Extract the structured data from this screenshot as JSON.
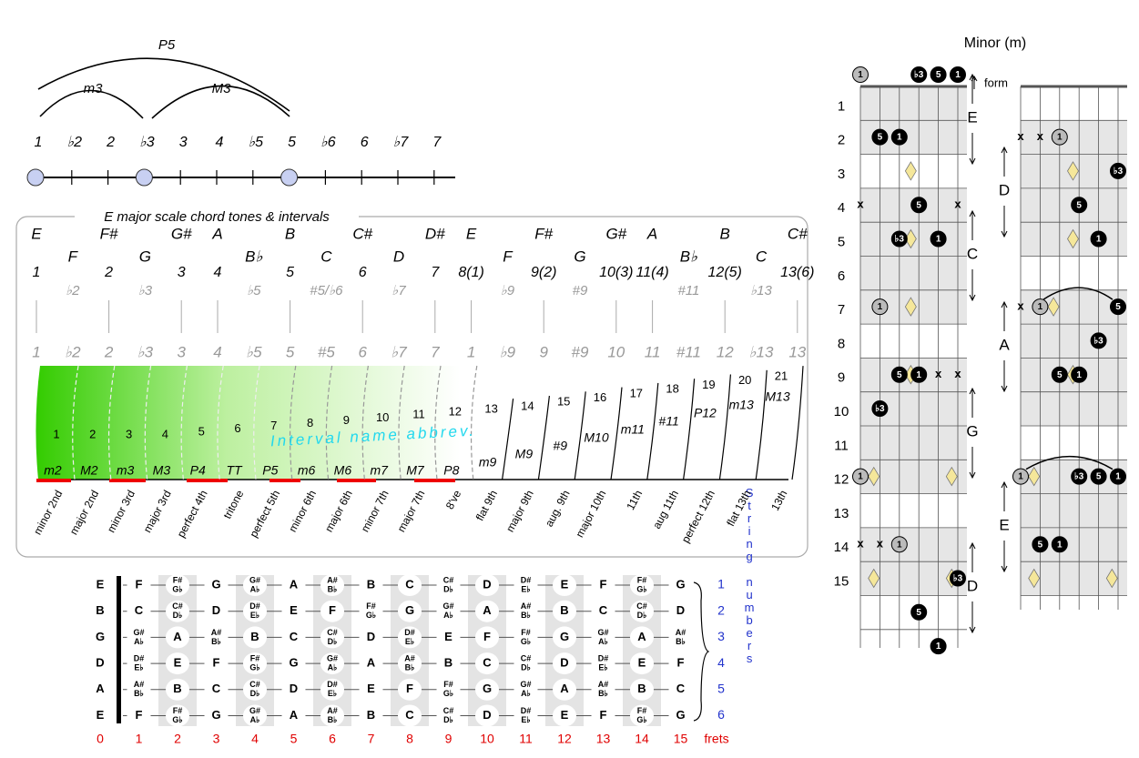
{
  "intervals_diagram": {
    "arcs": [
      "P5",
      "m3",
      "M3"
    ],
    "degrees": [
      "1",
      "♭2",
      "2",
      "♭3",
      "3",
      "4",
      "♭5",
      "5",
      "♭6",
      "6",
      "♭7",
      "7"
    ]
  },
  "scale_box": {
    "title": "E major scale chord tones & intervals",
    "scale_notes": [
      "E",
      null,
      "F#",
      null,
      "G#",
      "A",
      null,
      "B",
      null,
      "C#",
      null,
      "D#",
      "E",
      null,
      "F#",
      null,
      "G#",
      "A",
      null,
      "B",
      null,
      "C#"
    ],
    "other_notes": [
      null,
      "F",
      null,
      "G",
      null,
      null,
      "B♭",
      null,
      "C",
      null,
      "D",
      null,
      null,
      "F",
      null,
      "G",
      null,
      null,
      "B♭",
      null,
      "C",
      null
    ],
    "degrees": [
      "1",
      null,
      "2",
      null,
      "3",
      "4",
      null,
      "5",
      null,
      "6",
      null,
      "7",
      "8(1)",
      null,
      "9(2)",
      null,
      "10(3)",
      "11(4)",
      null,
      "12(5)",
      null,
      "13(6)"
    ],
    "altered": [
      null,
      "♭2",
      null,
      "♭3",
      null,
      null,
      "♭5",
      null,
      "#5/♭6",
      null,
      "♭7",
      null,
      null,
      "♭9",
      null,
      "#9",
      null,
      null,
      "#11",
      null,
      "♭13",
      null
    ],
    "chromatic": [
      "1",
      "♭2",
      "2",
      "♭3",
      "3",
      "4",
      "♭5",
      "5",
      "#5",
      "6",
      "♭7",
      "7",
      "1",
      "♭9",
      "9",
      "#9",
      "10",
      "11",
      "#11",
      "12",
      "♭13",
      "13"
    ],
    "overlay": "Interval name abbrev.",
    "intervals": [
      {
        "semitones": 1,
        "abbrev": "m2",
        "name": "minor 2nd"
      },
      {
        "semitones": 2,
        "abbrev": "M2",
        "name": "major 2nd"
      },
      {
        "semitones": 3,
        "abbrev": "m3",
        "name": "minor 3rd"
      },
      {
        "semitones": 4,
        "abbrev": "M3",
        "name": "major 3rd"
      },
      {
        "semitones": 5,
        "abbrev": "P4",
        "name": "perfect 4th"
      },
      {
        "semitones": 6,
        "abbrev": "TT",
        "name": "tritone"
      },
      {
        "semitones": 7,
        "abbrev": "P5",
        "name": "perfect 5th"
      },
      {
        "semitones": 8,
        "abbrev": "m6",
        "name": "minor 6th"
      },
      {
        "semitones": 9,
        "abbrev": "M6",
        "name": "major 6th"
      },
      {
        "semitones": 10,
        "abbrev": "m7",
        "name": "minor 7th"
      },
      {
        "semitones": 11,
        "abbrev": "M7",
        "name": "major 7th"
      },
      {
        "semitones": 12,
        "abbrev": "P8",
        "name": "8've"
      },
      {
        "semitones": 13,
        "abbrev": "m9",
        "name": "flat 9th"
      },
      {
        "semitones": 14,
        "abbrev": "M9",
        "name": "major 9th"
      },
      {
        "semitones": 15,
        "abbrev": "#9",
        "name": "aug. 9th"
      },
      {
        "semitones": 16,
        "abbrev": "M10",
        "name": "major 10th"
      },
      {
        "semitones": 17,
        "abbrev": "m11",
        "name": "11th"
      },
      {
        "semitones": 18,
        "abbrev": "#11",
        "name": "aug 11th"
      },
      {
        "semitones": 19,
        "abbrev": "P12",
        "name": "perfect 12th"
      },
      {
        "semitones": 20,
        "abbrev": "m13",
        "name": "flat 13th"
      },
      {
        "semitones": 21,
        "abbrev": "M13",
        "name": "13th"
      }
    ]
  },
  "fretboard": {
    "open_strings": [
      "E",
      "B",
      "G",
      "D",
      "A",
      "E"
    ],
    "strings": [
      [
        "F",
        {
          "sharp": "F#",
          "flat": "G♭"
        },
        "G",
        {
          "sharp": "G#",
          "flat": "A♭"
        },
        "A",
        {
          "sharp": "A#",
          "flat": "B♭"
        },
        "B",
        "C",
        {
          "sharp": "C#",
          "flat": "D♭"
        },
        "D",
        {
          "sharp": "D#",
          "flat": "E♭"
        },
        "E",
        "F",
        {
          "sharp": "F#",
          "flat": "G♭"
        },
        "G"
      ],
      [
        "C",
        {
          "sharp": "C#",
          "flat": "D♭"
        },
        "D",
        {
          "sharp": "D#",
          "flat": "E♭"
        },
        "E",
        "F",
        {
          "sharp": "F#",
          "flat": "G♭"
        },
        "G",
        {
          "sharp": "G#",
          "flat": "A♭"
        },
        "A",
        {
          "sharp": "A#",
          "flat": "B♭"
        },
        "B",
        "C",
        {
          "sharp": "C#",
          "flat": "D♭"
        },
        "D"
      ],
      [
        {
          "sharp": "G#",
          "flat": "A♭"
        },
        "A",
        {
          "sharp": "A#",
          "flat": "B♭"
        },
        "B",
        "C",
        {
          "sharp": "C#",
          "flat": "D♭"
        },
        "D",
        {
          "sharp": "D#",
          "flat": "E♭"
        },
        "E",
        "F",
        {
          "sharp": "F#",
          "flat": "G♭"
        },
        "G",
        {
          "sharp": "G#",
          "flat": "A♭"
        },
        "A",
        {
          "sharp": "A#",
          "flat": "B♭"
        }
      ],
      [
        {
          "sharp": "D#",
          "flat": "E♭"
        },
        "E",
        "F",
        {
          "sharp": "F#",
          "flat": "G♭"
        },
        "G",
        {
          "sharp": "G#",
          "flat": "A♭"
        },
        "A",
        {
          "sharp": "A#",
          "flat": "B♭"
        },
        "B",
        "C",
        {
          "sharp": "C#",
          "flat": "D♭"
        },
        "D",
        {
          "sharp": "D#",
          "flat": "E♭"
        },
        "E",
        "F"
      ],
      [
        {
          "sharp": "A#",
          "flat": "B♭"
        },
        "B",
        "C",
        {
          "sharp": "C#",
          "flat": "D♭"
        },
        "D",
        {
          "sharp": "D#",
          "flat": "E♭"
        },
        "E",
        "F",
        {
          "sharp": "F#",
          "flat": "G♭"
        },
        "G",
        {
          "sharp": "G#",
          "flat": "A♭"
        },
        "A",
        {
          "sharp": "A#",
          "flat": "B♭"
        },
        "B",
        "C"
      ],
      [
        "F",
        {
          "sharp": "F#",
          "flat": "G♭"
        },
        "G",
        {
          "sharp": "G#",
          "flat": "A♭"
        },
        "A",
        {
          "sharp": "A#",
          "flat": "B♭"
        },
        "B",
        "C",
        {
          "sharp": "C#",
          "flat": "D♭"
        },
        "D",
        {
          "sharp": "D#",
          "flat": "E♭"
        },
        "E",
        "F",
        {
          "sharp": "F#",
          "flat": "G♭"
        },
        "G"
      ]
    ],
    "string_numbers": [
      1,
      2,
      3,
      4,
      5,
      6
    ],
    "string_numbers_label": "String numbers",
    "frets": [
      0,
      1,
      2,
      3,
      4,
      5,
      6,
      7,
      8,
      9,
      10,
      11,
      12,
      13,
      14,
      15
    ],
    "frets_label": "frets"
  },
  "chord_forms": {
    "title": "Minor (m)",
    "form_label": "form",
    "fret_numbers": [
      1,
      2,
      3,
      4,
      5,
      6,
      7,
      8,
      9,
      10,
      11,
      12,
      13,
      14,
      15
    ],
    "left_forms": [
      "E",
      "C",
      "G",
      "D"
    ],
    "right_forms": [
      "D",
      "A",
      "E"
    ],
    "left_dots": [
      {
        "label": "1",
        "fret": 0,
        "string": 1,
        "color": "#bbbbbb"
      },
      {
        "label": "♭3",
        "fret": 0,
        "string": 4,
        "color": "#000000"
      },
      {
        "label": "5",
        "fret": 0,
        "string": 5,
        "color": "#000000"
      },
      {
        "label": "1",
        "fret": 0,
        "string": 6,
        "color": "#000000"
      },
      {
        "label": "5",
        "fret": 2,
        "string": 2,
        "color": "#000000"
      },
      {
        "label": "1",
        "fret": 2,
        "string": 3,
        "color": "#000000"
      },
      {
        "label": "x",
        "fret": 4,
        "string": 1
      },
      {
        "label": "5",
        "fret": 4,
        "string": 4,
        "color": "#000000"
      },
      {
        "label": "x",
        "fret": 4,
        "string": 6
      },
      {
        "label": "♭3",
        "fret": 5,
        "string": 3,
        "color": "#000000"
      },
      {
        "label": "1",
        "fret": 5,
        "string": 5,
        "color": "#000000"
      },
      {
        "label": "1",
        "fret": 7,
        "string": 2,
        "color": "#bbbbbb"
      },
      {
        "label": "5",
        "fret": 9,
        "string": 3,
        "color": "#000000"
      },
      {
        "label": "1",
        "fret": 9,
        "string": 4,
        "color": "#000000"
      },
      {
        "label": "x",
        "fret": 9,
        "string": 5
      },
      {
        "label": "x",
        "fret": 9,
        "string": 6
      },
      {
        "label": "♭3",
        "fret": 10,
        "string": 2,
        "color": "#000000"
      },
      {
        "label": "1",
        "fret": 12,
        "string": 1,
        "color": "#bbbbbb"
      },
      {
        "label": "x",
        "fret": 14,
        "string": 1
      },
      {
        "label": "x",
        "fret": 14,
        "string": 2
      },
      {
        "label": "1",
        "fret": 14,
        "string": 3,
        "color": "#bbbbbb"
      },
      {
        "label": "♭3",
        "fret": 15,
        "string": 6,
        "color": "#000000"
      },
      {
        "label": "5",
        "fret": 16,
        "string": 4,
        "color": "#000000"
      },
      {
        "label": "1",
        "fret": 17,
        "string": 5,
        "color": "#000000"
      }
    ],
    "right_dots": [
      {
        "label": "x",
        "fret": 2,
        "string": 1
      },
      {
        "label": "x",
        "fret": 2,
        "string": 2
      },
      {
        "label": "1",
        "fret": 2,
        "string": 3,
        "color": "#bbbbbb"
      },
      {
        "label": "♭3",
        "fret": 3,
        "string": 6,
        "color": "#000000"
      },
      {
        "label": "5",
        "fret": 4,
        "string": 4,
        "color": "#000000"
      },
      {
        "label": "1",
        "fret": 5,
        "string": 5,
        "color": "#000000"
      },
      {
        "label": "x",
        "fret": 7,
        "string": 1
      },
      {
        "label": "1",
        "fret": 7,
        "string": 2,
        "color": "#bbbbbb"
      },
      {
        "label": "5",
        "fret": 7,
        "string": 6,
        "color": "#000000"
      },
      {
        "label": "♭3",
        "fret": 8,
        "string": 5,
        "color": "#000000"
      },
      {
        "label": "5",
        "fret": 9,
        "string": 3,
        "color": "#000000"
      },
      {
        "label": "1",
        "fret": 9,
        "string": 4,
        "color": "#000000"
      },
      {
        "label": "1",
        "fret": 12,
        "string": 1,
        "color": "#bbbbbb"
      },
      {
        "label": "♭3",
        "fret": 12,
        "string": 4,
        "color": "#000000"
      },
      {
        "label": "5",
        "fret": 12,
        "string": 5,
        "color": "#000000"
      },
      {
        "label": "1",
        "fret": 12,
        "string": 6,
        "color": "#000000"
      },
      {
        "label": "5",
        "fret": 14,
        "string": 2,
        "color": "#000000"
      },
      {
        "label": "1",
        "fret": 14,
        "string": 3,
        "color": "#000000"
      }
    ]
  }
}
